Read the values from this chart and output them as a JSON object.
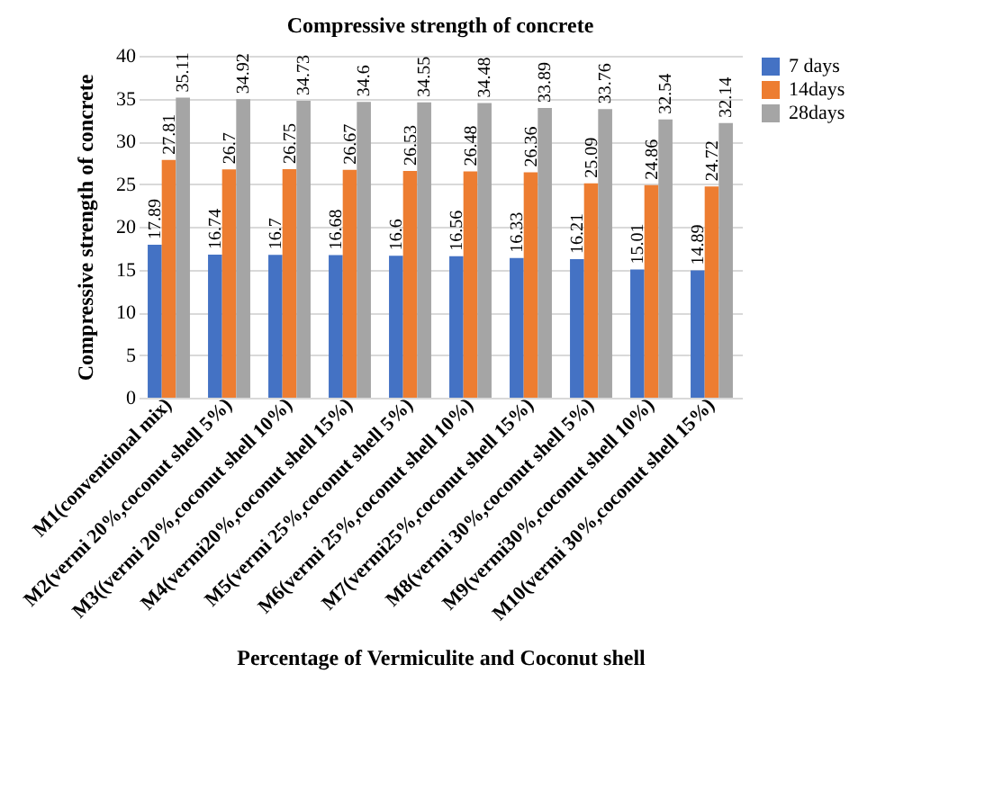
{
  "chart_data": {
    "type": "bar",
    "title": "Compressive strength of concrete",
    "xlabel": "Percentage of Vermiculite and Coconut shell",
    "ylabel": "Compressive strength of concrete",
    "categories": [
      "M1(conventional mix)",
      "M2(vermi 20%,coconut shell 5%)",
      "M3((vermi 20%,coconut shell 10%)",
      "M4(vermi20%,coconut shell 15%)",
      "M5(vermi 25%,coconut shell 5%)",
      "M6(vermi 25%,coconut shell 10%)",
      "M7(vermi25%,coconut shell 15%)",
      "M8(vermi 30%,coconut shell 5%)",
      "M9(vermi30%,coconut shell 10%)",
      "M10(vermi 30%,coconut shell 15%)"
    ],
    "series": [
      {
        "name": "7 days",
        "color": "#4472c4",
        "values": [
          17.89,
          16.74,
          16.7,
          16.68,
          16.6,
          16.56,
          16.33,
          16.21,
          15.01,
          14.89
        ]
      },
      {
        "name": "14days",
        "color": "#ed7d31",
        "values": [
          27.81,
          26.7,
          26.75,
          26.67,
          26.53,
          26.48,
          26.36,
          25.09,
          24.86,
          24.72
        ]
      },
      {
        "name": "28days",
        "color": "#a5a5a5",
        "values": [
          35.11,
          34.92,
          34.73,
          34.6,
          34.55,
          34.48,
          33.89,
          33.76,
          32.54,
          32.14
        ]
      }
    ],
    "ylim": [
      0,
      40
    ],
    "yticks": [
      0,
      5,
      10,
      15,
      20,
      25,
      30,
      35,
      40
    ],
    "grid": "y",
    "legend": "right",
    "data_labels": true
  }
}
